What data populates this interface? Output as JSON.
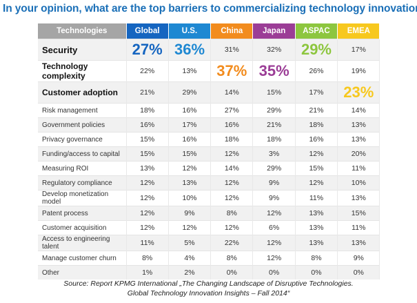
{
  "chart_data": {
    "type": "table",
    "title": "In your opinion, what are the top barriers to commercializing technology innovations?",
    "header_label": "Technologies",
    "columns": [
      {
        "name": "Global",
        "color": "#1565c0"
      },
      {
        "name": "U.S.",
        "color": "#1e88d2"
      },
      {
        "name": "China",
        "color": "#f28c1e"
      },
      {
        "name": "Japan",
        "color": "#9b3d96"
      },
      {
        "name": "ASPAC",
        "color": "#8dc63f"
      },
      {
        "name": "EMEA",
        "color": "#f7c81e"
      }
    ],
    "rows": [
      {
        "label": "Security",
        "values": [
          "27%",
          "36%",
          "31%",
          "32%",
          "29%",
          "17%"
        ],
        "highlight": [
          0,
          1,
          4
        ]
      },
      {
        "label": "Technology complexity",
        "values": [
          "22%",
          "13%",
          "37%",
          "35%",
          "26%",
          "19%"
        ],
        "highlight": [
          2,
          3
        ]
      },
      {
        "label": "Customer adoption",
        "values": [
          "21%",
          "29%",
          "14%",
          "15%",
          "17%",
          "23%"
        ],
        "highlight": [
          5
        ]
      },
      {
        "label": "Risk management",
        "values": [
          "18%",
          "16%",
          "27%",
          "29%",
          "21%",
          "14%"
        ],
        "highlight": []
      },
      {
        "label": "Government policies",
        "values": [
          "16%",
          "17%",
          "16%",
          "21%",
          "18%",
          "13%"
        ],
        "highlight": []
      },
      {
        "label": "Privacy governance",
        "values": [
          "15%",
          "16%",
          "18%",
          "18%",
          "16%",
          "13%"
        ],
        "highlight": []
      },
      {
        "label": "Funding/access to capital",
        "values": [
          "15%",
          "15%",
          "12%",
          "3%",
          "12%",
          "20%"
        ],
        "highlight": []
      },
      {
        "label": "Measuring ROI",
        "values": [
          "13%",
          "12%",
          "14%",
          "29%",
          "15%",
          "11%"
        ],
        "highlight": []
      },
      {
        "label": "Regulatory compliance",
        "values": [
          "12%",
          "13%",
          "12%",
          "9%",
          "12%",
          "10%"
        ],
        "highlight": []
      },
      {
        "label": "Develop monetization model",
        "values": [
          "12%",
          "10%",
          "12%",
          "9%",
          "11%",
          "13%"
        ],
        "highlight": []
      },
      {
        "label": "Patent process",
        "values": [
          "12%",
          "9%",
          "8%",
          "12%",
          "13%",
          "15%"
        ],
        "highlight": []
      },
      {
        "label": "Customer acquisition",
        "values": [
          "12%",
          "12%",
          "12%",
          "6%",
          "13%",
          "11%"
        ],
        "highlight": []
      },
      {
        "label": "Access to engineering talent",
        "values": [
          "11%",
          "5%",
          "22%",
          "12%",
          "13%",
          "13%"
        ],
        "highlight": []
      },
      {
        "label": "Manage customer churn",
        "values": [
          "8%",
          "4%",
          "8%",
          "12%",
          "8%",
          "9%"
        ],
        "highlight": []
      },
      {
        "label": "Other",
        "values": [
          "1%",
          "2%",
          "0%",
          "0%",
          "0%",
          "0%"
        ],
        "highlight": []
      }
    ]
  },
  "source": {
    "line1": "Source: Report KPMG International „The Changing Landscape of Disruptive Technologies.",
    "line2": "Global Technology Innovation Insights – Fall 2014“"
  }
}
